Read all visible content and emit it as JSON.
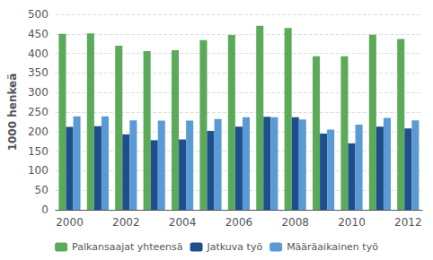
{
  "chart_data": {
    "type": "bar",
    "categories": [
      "2000",
      null,
      "2002",
      null,
      "2004",
      null,
      "2006",
      null,
      "2008",
      null,
      "2010",
      null,
      "2012"
    ],
    "series": [
      {
        "name": "Palkansaajat yhteensä",
        "color": "#5aaa5a",
        "values": [
          450,
          451,
          420,
          406,
          408,
          434,
          447,
          471,
          465,
          393,
          393,
          448,
          437
        ]
      },
      {
        "name": "Jatkuva työ",
        "color": "#1f4e8c",
        "values": [
          212,
          214,
          193,
          178,
          180,
          202,
          213,
          238,
          237,
          195,
          170,
          213,
          208
        ]
      },
      {
        "name": "Määräaikainen työ",
        "color": "#5b9bd5",
        "values": [
          239,
          239,
          229,
          228,
          228,
          232,
          237,
          237,
          231,
          205,
          218,
          235,
          229
        ]
      }
    ],
    "ylabel": "1000 henkeä",
    "ylim": [
      0,
      500
    ],
    "yticks": [
      0,
      50,
      100,
      150,
      200,
      250,
      300,
      350,
      400,
      450,
      500
    ],
    "grid": true,
    "legend": "bottom"
  }
}
